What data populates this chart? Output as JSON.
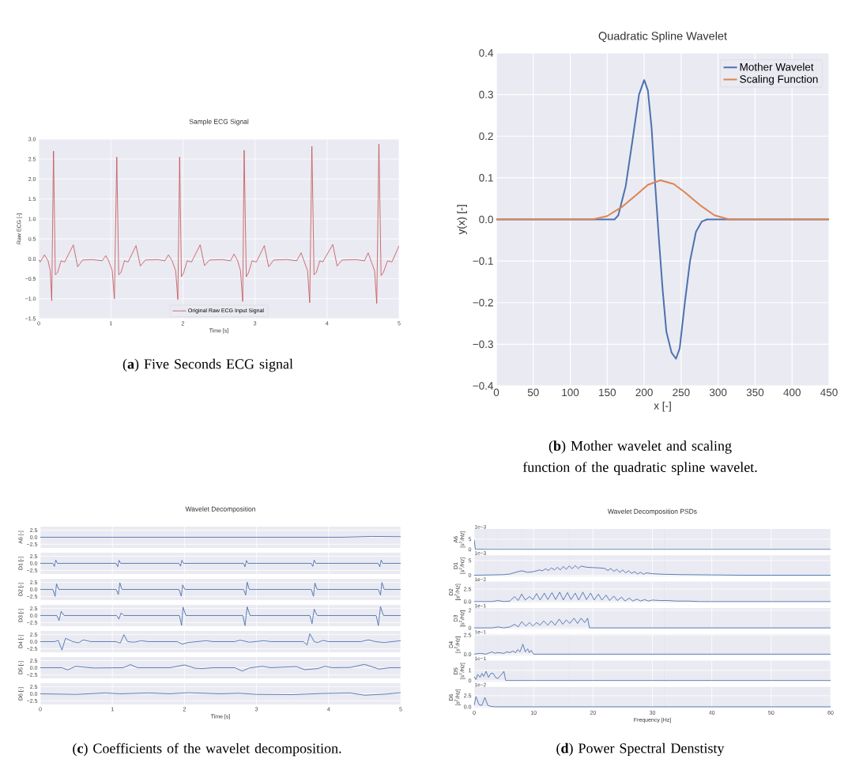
{
  "chart_data": [
    {
      "type": "line",
      "title": "Sample ECG Signal",
      "xlabel": "Time [s]",
      "ylabel": "Raw ECG [-]",
      "xlim": [
        0,
        5
      ],
      "ylim": [
        -1.5,
        3.0
      ],
      "xticks": [
        0,
        1,
        2,
        3,
        4,
        5
      ],
      "yticks": [
        {
          "value": -1.5,
          "label": "−1.5"
        },
        {
          "value": -1.0,
          "label": "−1.0"
        },
        {
          "value": -0.5,
          "label": "−0.5"
        },
        {
          "value": 0,
          "label": "0.0"
        },
        {
          "value": 0.5,
          "label": "0.5"
        },
        {
          "value": 1.0,
          "label": "1.0"
        },
        {
          "value": 1.5,
          "label": "1.5"
        },
        {
          "value": 2.0,
          "label": "2.0"
        },
        {
          "value": 2.5,
          "label": "2.5"
        },
        {
          "value": 3.0,
          "label": "3.0"
        }
      ],
      "grid": true,
      "legend": "bottom",
      "annotations": [
        "(**a**) Five Seconds ECG signal"
      ],
      "series": [
        {
          "name": "Original Raw ECG Input Signal",
          "color": "#c44e52",
          "x": [
            0,
            0.02,
            0.08,
            0.13,
            0.16,
            0.18,
            0.205,
            0.23,
            0.26,
            0.31,
            0.36,
            0.48,
            0.54,
            0.61,
            0.75,
            0.88,
            0.93,
            0.97,
            1.02,
            1.05,
            1.083,
            1.11,
            1.14,
            1.19,
            1.24,
            1.35,
            1.41,
            1.48,
            1.65,
            1.75,
            1.8,
            1.85,
            1.9,
            1.93,
            1.955,
            1.98,
            2.01,
            2.06,
            2.12,
            2.24,
            2.3,
            2.37,
            2.55,
            2.66,
            2.71,
            2.76,
            2.8,
            2.83,
            2.85,
            2.88,
            2.91,
            2.96,
            3.02,
            3.13,
            3.19,
            3.26,
            3.45,
            3.58,
            3.64,
            3.68,
            3.73,
            3.76,
            3.79,
            3.82,
            3.85,
            3.9,
            3.94,
            4.08,
            4.14,
            4.21,
            4.4,
            4.52,
            4.57,
            4.61,
            4.66,
            4.69,
            4.72,
            4.75,
            4.78,
            4.84,
            4.9,
            5
          ],
          "values": [
            -0.02,
            -0.08,
            0.1,
            -0.05,
            -0.3,
            -1.05,
            2.7,
            -0.4,
            -0.35,
            -0.05,
            -0.08,
            0.35,
            -0.2,
            -0.03,
            -0.02,
            -0.05,
            0.08,
            -0.05,
            -0.3,
            -1.0,
            2.55,
            -0.4,
            -0.35,
            -0.05,
            -0.08,
            0.33,
            -0.18,
            -0.03,
            -0.02,
            -0.05,
            0.1,
            -0.05,
            -0.3,
            -1.02,
            2.55,
            -0.45,
            -0.35,
            -0.05,
            -0.08,
            0.35,
            -0.17,
            -0.03,
            -0.02,
            -0.05,
            0.12,
            -0.05,
            -0.3,
            -1.07,
            2.72,
            -0.45,
            -0.35,
            -0.05,
            -0.08,
            0.33,
            -0.2,
            -0.03,
            -0.02,
            -0.05,
            0.15,
            -0.05,
            -0.3,
            -1.1,
            2.82,
            -0.4,
            -0.35,
            -0.05,
            -0.08,
            0.36,
            -0.18,
            -0.03,
            -0.02,
            -0.05,
            0.15,
            -0.05,
            -0.3,
            -1.12,
            2.88,
            -0.42,
            -0.35,
            -0.05,
            -0.08,
            0.33
          ]
        }
      ]
    },
    {
      "type": "line",
      "title": "Quadratic Spline Wavelet",
      "xlabel": "x [-]",
      "ylabel": "y(x) [-]",
      "xlim": [
        0,
        450
      ],
      "ylim": [
        -0.4,
        0.4
      ],
      "xticks": [
        0,
        50,
        100,
        150,
        200,
        250,
        300,
        350,
        400,
        450
      ],
      "yticks": [
        {
          "value": -0.4,
          "label": "−0.4"
        },
        {
          "value": -0.3,
          "label": "−0.3"
        },
        {
          "value": -0.2,
          "label": "−0.2"
        },
        {
          "value": -0.1,
          "label": "−0.1"
        },
        {
          "value": 0,
          "label": "0.0"
        },
        {
          "value": 0.1,
          "label": "0.1"
        },
        {
          "value": 0.2,
          "label": "0.2"
        },
        {
          "value": 0.3,
          "label": "0.3"
        },
        {
          "value": 0.4,
          "label": "0.4"
        }
      ],
      "grid": true,
      "legend": "top right",
      "annotations": [
        "(**b**) Mother wavelet and scaling function of the quadratic spline wavelet."
      ],
      "series": [
        {
          "name": "Mother Wavelet",
          "color": "#4c72b0",
          "x": [
            0,
            160,
            165,
            175,
            185,
            193,
            200,
            205,
            210,
            215,
            220,
            225,
            230,
            237,
            243,
            248,
            255,
            262,
            270,
            278,
            285,
            450
          ],
          "values": [
            0,
            0,
            0.01,
            0.08,
            0.2,
            0.3,
            0.335,
            0.31,
            0.22,
            0.08,
            -0.05,
            -0.17,
            -0.27,
            -0.32,
            -0.335,
            -0.31,
            -0.2,
            -0.1,
            -0.03,
            -0.005,
            0,
            0
          ]
        },
        {
          "name": "Scaling Function",
          "color": "#dd8452",
          "x": [
            0,
            130,
            150,
            170,
            190,
            205,
            222,
            240,
            255,
            275,
            295,
            315,
            450
          ],
          "values": [
            0,
            0,
            0.008,
            0.03,
            0.06,
            0.083,
            0.094,
            0.085,
            0.065,
            0.035,
            0.01,
            0,
            0
          ]
        }
      ]
    },
    {
      "type": "line",
      "title": "Wavelet Decomposition",
      "ylabel": "A6 [-]",
      "xlim": [
        0,
        5
      ],
      "ylim": [
        -3.8,
        3.8
      ],
      "xticks": [
        0,
        1,
        2,
        3,
        4,
        5
      ],
      "yticks": [
        {
          "value": -2.5,
          "label": "−2.5"
        },
        {
          "value": 0,
          "label": "0.0"
        },
        {
          "value": 2.5,
          "label": "2.5"
        }
      ],
      "grid": true,
      "tick_labels": "y",
      "series": [
        {
          "color": "#4c72b0",
          "x": [
            0,
            4.2,
            4.6,
            5
          ],
          "values": [
            0,
            0,
            0.3,
            0.2
          ]
        }
      ]
    },
    {
      "type": "line",
      "ylabel": "D1 [-]",
      "xlim": [
        0,
        5
      ],
      "ylim": [
        -3.8,
        3.8
      ],
      "xticks": [
        0,
        1,
        2,
        3,
        4,
        5
      ],
      "yticks": [
        {
          "value": -2.5,
          "label": "−2.5"
        },
        {
          "value": 0,
          "label": "0.0"
        },
        {
          "value": 2.5,
          "label": "2.5"
        }
      ],
      "grid": true,
      "tick_labels": "y",
      "series": [
        {
          "color": "#4c72b0",
          "x": [
            0,
            0.175,
            0.195,
            0.215,
            0.235,
            1.053,
            1.073,
            1.093,
            1.113,
            1.925,
            1.945,
            1.965,
            1.985,
            2.82,
            2.84,
            2.86,
            2.88,
            3.76,
            3.78,
            3.8,
            3.82,
            4.69,
            4.71,
            4.73,
            4.75,
            5
          ],
          "values": [
            0,
            0,
            -1.1,
            1.2,
            0,
            0,
            -1.2,
            1.1,
            0,
            0,
            -1.0,
            1.1,
            0,
            0,
            -1.2,
            1.0,
            0,
            0,
            -1.1,
            1.2,
            0,
            0,
            -1.2,
            1.2,
            0,
            0
          ]
        }
      ]
    },
    {
      "type": "line",
      "ylabel": "D2 [-]",
      "xlim": [
        0,
        5
      ],
      "ylim": [
        -3.8,
        3.8
      ],
      "xticks": [
        0,
        1,
        2,
        3,
        4,
        5
      ],
      "yticks": [
        {
          "value": -2.5,
          "label": "−2.5"
        },
        {
          "value": 0,
          "label": "0.0"
        },
        {
          "value": 2.5,
          "label": "2.5"
        }
      ],
      "grid": true,
      "tick_labels": "y",
      "series": [
        {
          "color": "#4c72b0",
          "x": [
            0,
            0.175,
            0.205,
            0.225,
            0.255,
            1.053,
            1.083,
            1.103,
            1.133,
            1.925,
            1.955,
            1.975,
            2.005,
            2.82,
            2.85,
            2.87,
            2.9,
            3.76,
            3.79,
            3.81,
            3.84,
            4.69,
            4.72,
            4.74,
            4.77,
            5
          ],
          "values": [
            0,
            0,
            -2.5,
            2.0,
            0,
            0,
            -1.8,
            2.4,
            0,
            0,
            -2.4,
            1.6,
            0,
            0,
            -2.0,
            2.6,
            0,
            0,
            -2.5,
            2.3,
            0,
            0,
            -2.0,
            2.5,
            0,
            0
          ]
        }
      ]
    },
    {
      "type": "line",
      "ylabel": "D3 [-]",
      "xlim": [
        0,
        5
      ],
      "ylim": [
        -3.8,
        3.8
      ],
      "xticks": [
        0,
        1,
        2,
        3,
        4,
        5
      ],
      "yticks": [
        {
          "value": -2.5,
          "label": "−2.5"
        },
        {
          "value": 0,
          "label": "0.0"
        },
        {
          "value": 2.5,
          "label": "2.5"
        }
      ],
      "grid": true,
      "tick_labels": "y",
      "series": [
        {
          "color": "#4c72b0",
          "x": [
            0,
            0.23,
            0.26,
            0.29,
            0.33,
            1.06,
            1.09,
            1.12,
            1.16,
            1.93,
            1.96,
            1.98,
            2.02,
            2.81,
            2.84,
            2.87,
            2.91,
            3.74,
            3.77,
            3.8,
            3.84,
            4.66,
            4.69,
            4.72,
            4.76,
            5
          ],
          "values": [
            0,
            0,
            -1.8,
            1.5,
            0,
            0,
            -1.3,
            0.9,
            0,
            0,
            -3.5,
            3.0,
            0,
            0,
            -3.6,
            3.1,
            0,
            0,
            -2.9,
            2.3,
            0,
            0,
            -3.6,
            3.2,
            0,
            0
          ]
        }
      ]
    },
    {
      "type": "line",
      "ylabel": "D4 [-]",
      "xlim": [
        0,
        5
      ],
      "ylim": [
        -3.8,
        3.8
      ],
      "xticks": [
        0,
        1,
        2,
        3,
        4,
        5
      ],
      "yticks": [
        {
          "value": -2.5,
          "label": "−2.5"
        },
        {
          "value": 0,
          "label": "0.0"
        },
        {
          "value": 2.5,
          "label": "2.5"
        }
      ],
      "grid": true,
      "tick_labels": "y",
      "series": [
        {
          "color": "#4c72b0",
          "x": [
            0,
            0.2,
            0.25,
            0.3,
            0.35,
            0.45,
            0.53,
            0.6,
            0.7,
            1.05,
            1.11,
            1.16,
            1.21,
            1.3,
            1.4,
            1.5,
            1.9,
            1.97,
            2.05,
            2.3,
            2.4,
            2.7,
            2.77,
            2.9,
            3.1,
            3.2,
            3.65,
            3.7,
            3.74,
            3.8,
            3.85,
            3.92,
            4.0,
            4.45,
            4.55,
            4.65,
            4.77,
            5
          ],
          "values": [
            0,
            0,
            0.4,
            -3.0,
            1.2,
            0,
            -0.4,
            0.6,
            0,
            0,
            -0.5,
            2.5,
            0,
            -0.2,
            0.3,
            0,
            0,
            -0.9,
            -0.3,
            0.3,
            0,
            0,
            0.5,
            -0.2,
            0.3,
            0,
            0,
            -1.2,
            2.8,
            0,
            -0.3,
            0.4,
            0,
            0,
            0.6,
            0,
            -0.3,
            0.3
          ]
        }
      ]
    },
    {
      "type": "line",
      "ylabel": "D5 [-]",
      "xlim": [
        0,
        5
      ],
      "ylim": [
        -3.8,
        3.8
      ],
      "xticks": [
        0,
        1,
        2,
        3,
        4,
        5
      ],
      "yticks": [
        {
          "value": -2.5,
          "label": "−2.5"
        },
        {
          "value": 0,
          "label": "0.0"
        },
        {
          "value": 2.5,
          "label": "2.5"
        }
      ],
      "grid": true,
      "tick_labels": "y",
      "series": [
        {
          "color": "#4c72b0",
          "x": [
            0,
            0.3,
            0.38,
            0.49,
            0.6,
            0.75,
            1.15,
            1.25,
            1.35,
            1.8,
            2.0,
            2.15,
            2.25,
            2.4,
            2.7,
            2.8,
            2.9,
            3.08,
            3.2,
            3.55,
            3.67,
            3.85,
            3.95,
            4.05,
            4.3,
            4.5,
            4.7,
            4.85,
            5
          ],
          "values": [
            0,
            0,
            -0.8,
            0.5,
            0.2,
            -0.1,
            0,
            1.1,
            0,
            0,
            1.0,
            -0.2,
            -0.3,
            0,
            0,
            -1.2,
            -0.1,
            0.5,
            0,
            0.4,
            -0.7,
            -0.3,
            0.5,
            0,
            0.1,
            1.2,
            -0.5,
            0,
            0
          ]
        }
      ]
    },
    {
      "type": "line",
      "xlabel": "Time [s]",
      "ylabel": "D6 [-]",
      "xlim": [
        0,
        5
      ],
      "ylim": [
        -3.8,
        3.8
      ],
      "xticks": [
        0,
        1,
        2,
        3,
        4,
        5
      ],
      "yticks": [
        {
          "value": -2.5,
          "label": "−2.5"
        },
        {
          "value": 0,
          "label": "0.0"
        },
        {
          "value": 2.5,
          "label": "2.5"
        }
      ],
      "grid": true,
      "annotations": [
        "(**c**) Coefficients of the wavelet decomposition."
      ],
      "series": [
        {
          "color": "#4c72b0",
          "x": [
            0,
            0.5,
            0.9,
            1.1,
            1.5,
            1.8,
            2.05,
            2.5,
            2.75,
            3.0,
            3.5,
            3.9,
            4.3,
            4.5,
            4.8,
            5
          ],
          "values": [
            0,
            -0.2,
            0.3,
            0,
            0.3,
            0,
            0.4,
            0,
            0.2,
            -0.2,
            -0.3,
            0.1,
            0.3,
            -0.5,
            -0.1,
            0.4
          ]
        }
      ]
    },
    {
      "type": "line",
      "title": "Wavelet Decomposition PSDs",
      "ylabel": "A6 [*s*$^{2}$*/Hz*]",
      "xlim": [
        0,
        60
      ],
      "ylim": [
        -0.25,
        10
      ],
      "xticks": [
        0,
        10,
        20,
        30,
        40,
        50,
        60
      ],
      "yticks": [
        0,
        5
      ],
      "grid": true,
      "tick_labels": "y",
      "annotations": [
        "1e−3"
      ],
      "ref_lines": [
        {
          "axis": "x",
          "value": 2,
          "color": "#8fa4cf",
          "line_style": "dotted"
        },
        {
          "axis": "x",
          "value": 4,
          "color": "#8fa4cf",
          "line_style": "dotted"
        },
        {
          "axis": "x",
          "value": 8,
          "color": "#8fa4cf",
          "line_style": "dotted"
        },
        {
          "axis": "x",
          "value": 16,
          "color": "#8fa4cf",
          "line_style": "dotted"
        },
        {
          "axis": "x",
          "value": 32,
          "color": "#8fa4cf",
          "line_style": "dotted"
        }
      ],
      "series": [
        {
          "color": "#4c72b0",
          "x": [
            0,
            0.2,
            1,
            2,
            60
          ],
          "values": [
            4.7,
            0,
            0.1,
            0,
            0
          ]
        }
      ]
    },
    {
      "type": "line",
      "ylabel": "D1 [*s*$^{2}$*/Hz*]",
      "xlim": [
        0,
        60
      ],
      "ylim": [
        -0.35,
        6.8
      ],
      "xticks": [
        0,
        10,
        20,
        30,
        40,
        50,
        60
      ],
      "yticks": [
        0,
        5
      ],
      "grid": true,
      "tick_labels": "y",
      "annotations": [
        "1e−3"
      ],
      "ref_lines": [
        {
          "axis": "x",
          "value": 2,
          "color": "#8fa4cf",
          "line_style": "dotted"
        },
        {
          "axis": "x",
          "value": 4,
          "color": "#8fa4cf",
          "line_style": "dotted"
        },
        {
          "axis": "x",
          "value": 8,
          "color": "#8fa4cf",
          "line_style": "dotted"
        },
        {
          "axis": "x",
          "value": 16,
          "color": "#8fa4cf",
          "line_style": "dotted"
        },
        {
          "axis": "x",
          "value": 32,
          "color": "#8fa4cf",
          "line_style": "dotted"
        }
      ],
      "series": [
        {
          "color": "#4c72b0",
          "x": [
            0,
            3,
            5,
            6,
            7,
            8,
            9,
            10,
            11,
            11.5,
            12,
            12.5,
            13,
            13.5,
            14,
            14.5,
            15,
            15.5,
            16,
            16.5,
            17,
            17.5,
            18,
            19,
            20,
            21,
            22,
            22.5,
            23,
            23.5,
            24,
            24.5,
            25,
            25.5,
            26,
            26.5,
            27,
            27.5,
            28,
            28.5,
            29,
            30,
            31,
            32,
            35,
            40,
            45,
            60
          ],
          "values": [
            0,
            0.1,
            0.2,
            0.4,
            1.0,
            1.5,
            1.0,
            1.2,
            1.8,
            1.5,
            2.2,
            1.6,
            2.5,
            1.8,
            2.7,
            1.8,
            3.0,
            2.0,
            3.2,
            2.2,
            3.3,
            2.3,
            3.1,
            2.7,
            2.6,
            2.5,
            2.3,
            1.6,
            2.3,
            1.3,
            2.0,
            1.0,
            1.8,
            0.8,
            1.5,
            0.6,
            1.2,
            0.4,
            1.0,
            0.3,
            0.8,
            0.5,
            0.4,
            0.3,
            0.2,
            0.1,
            0,
            0
          ]
        }
      ]
    },
    {
      "type": "line",
      "ylabel": "D2 [*s*$^{2}$*/Hz*]",
      "xlim": [
        0,
        60
      ],
      "ylim": [
        -0.2,
        4.0
      ],
      "xticks": [
        0,
        10,
        20,
        30,
        40,
        50,
        60
      ],
      "yticks": [
        {
          "value": 0,
          "label": "0.0"
        },
        {
          "value": 2.5,
          "label": "2.5"
        }
      ],
      "grid": true,
      "tick_labels": "y",
      "annotations": [
        "1e−2"
      ],
      "ref_lines": [
        {
          "axis": "x",
          "value": 2,
          "color": "#8fa4cf",
          "line_style": "dotted"
        },
        {
          "axis": "x",
          "value": 4,
          "color": "#8fa4cf",
          "line_style": "dotted"
        },
        {
          "axis": "x",
          "value": 8,
          "color": "#8fa4cf",
          "line_style": "dotted"
        },
        {
          "axis": "x",
          "value": 16,
          "color": "#8fa4cf",
          "line_style": "dotted"
        },
        {
          "axis": "x",
          "value": 32,
          "color": "#8fa4cf",
          "line_style": "dotted"
        }
      ],
      "series": [
        {
          "color": "#4c72b0",
          "x": [
            0,
            3,
            4,
            5,
            6,
            6.8,
            7.4,
            8,
            8.6,
            9.3,
            9.9,
            10.5,
            11.1,
            11.8,
            12.4,
            13.1,
            13.7,
            14.4,
            15,
            15.7,
            16.3,
            17,
            17.6,
            18.3,
            18.9,
            19.6,
            20.2,
            20.9,
            21.5,
            22.2,
            22.8,
            23.5,
            24.1,
            24.8,
            25.4,
            26.1,
            26.7,
            27.4,
            28,
            28.7,
            29.3,
            30,
            31.3,
            32.6,
            34,
            36,
            38,
            39,
            60
          ],
          "values": [
            0,
            0,
            0.2,
            0,
            0.1,
            1.0,
            0.2,
            1.5,
            0.3,
            1.0,
            0.4,
            1.6,
            0.3,
            1.7,
            0.4,
            1.8,
            0.4,
            1.9,
            0.3,
            1.8,
            0.4,
            1.7,
            0.3,
            1.9,
            0.4,
            1.7,
            0.3,
            1.5,
            0.3,
            1.3,
            0.2,
            1.1,
            0.2,
            0.9,
            0.1,
            0.7,
            0.1,
            0.5,
            0.1,
            0.4,
            0.1,
            0.3,
            0.2,
            0.2,
            0.1,
            0.1,
            0,
            0,
            0
          ]
        }
      ]
    },
    {
      "type": "line",
      "ylabel": "D3 [*s*$^{2}$*/Hz*]",
      "xlim": [
        0,
        60
      ],
      "ylim": [
        -0.12,
        2.27
      ],
      "xticks": [
        0,
        10,
        20,
        30,
        40,
        50,
        60
      ],
      "yticks": [
        0,
        2
      ],
      "grid": true,
      "tick_labels": "y",
      "annotations": [
        "1e−1"
      ],
      "ref_lines": [
        {
          "axis": "x",
          "value": 2,
          "color": "#8fa4cf",
          "line_style": "dotted"
        },
        {
          "axis": "x",
          "value": 4,
          "color": "#8fa4cf",
          "line_style": "dotted"
        },
        {
          "axis": "x",
          "value": 8,
          "color": "#8fa4cf",
          "line_style": "dotted"
        },
        {
          "axis": "x",
          "value": 16,
          "color": "#8fa4cf",
          "line_style": "dotted"
        },
        {
          "axis": "x",
          "value": 32,
          "color": "#8fa4cf",
          "line_style": "dotted"
        }
      ],
      "series": [
        {
          "color": "#4c72b0",
          "x": [
            0,
            3,
            4,
            5,
            6,
            6.8,
            7.4,
            8,
            8.7,
            9.3,
            9.9,
            10.5,
            11.1,
            11.7,
            12.4,
            13,
            13.6,
            14.3,
            14.9,
            15.5,
            16.1,
            16.8,
            17.4,
            18,
            18.6,
            19.1,
            19.4,
            60
          ],
          "values": [
            0,
            0,
            0.1,
            0,
            0.1,
            0.4,
            0.1,
            0.7,
            0.2,
            0.6,
            0.2,
            0.6,
            0.3,
            0.8,
            0.3,
            0.8,
            0.3,
            1.0,
            0.4,
            0.9,
            0.5,
            1.1,
            0.5,
            1.1,
            0.6,
            1.1,
            0,
            0
          ]
        }
      ]
    },
    {
      "type": "line",
      "ylabel": "D4 [*s*$^{2}$*/Hz*]",
      "xlim": [
        0,
        60
      ],
      "ylim": [
        -0.14,
        2.6
      ],
      "xticks": [
        0,
        10,
        20,
        30,
        40,
        50,
        60
      ],
      "yticks": [
        {
          "value": 0,
          "label": "0.0"
        },
        {
          "value": 2.5,
          "label": "2.5"
        }
      ],
      "grid": true,
      "tick_labels": "y",
      "annotations": [
        "1e−1"
      ],
      "ref_lines": [
        {
          "axis": "x",
          "value": 2,
          "color": "#8fa4cf",
          "line_style": "dotted"
        },
        {
          "axis": "x",
          "value": 4,
          "color": "#8fa4cf",
          "line_style": "dotted"
        },
        {
          "axis": "x",
          "value": 8,
          "color": "#8fa4cf",
          "line_style": "dotted"
        },
        {
          "axis": "x",
          "value": 16,
          "color": "#8fa4cf",
          "line_style": "dotted"
        },
        {
          "axis": "x",
          "value": 32,
          "color": "#8fa4cf",
          "line_style": "dotted"
        }
      ],
      "series": [
        {
          "color": "#4c72b0",
          "x": [
            0,
            1,
            2,
            3,
            3.5,
            4,
            5,
            5.5,
            6,
            6.5,
            7,
            7.3,
            7.7,
            8.2,
            8.6,
            9,
            9.3,
            9.6,
            10,
            60
          ],
          "values": [
            0,
            0.1,
            0,
            0.3,
            0.1,
            0.2,
            0.1,
            0.3,
            0.2,
            0.4,
            0.2,
            0.6,
            0.3,
            1.3,
            0.3,
            0.7,
            0.2,
            0.5,
            0,
            0
          ]
        }
      ]
    },
    {
      "type": "line",
      "ylabel": "D5 [*s*$^{2}$*/Hz*]",
      "xlim": [
        0,
        60
      ],
      "ylim": [
        -0.1,
        1.95
      ],
      "xticks": [
        0,
        10,
        20,
        30,
        40,
        50,
        60
      ],
      "yticks": [
        0,
        1
      ],
      "grid": true,
      "tick_labels": "y",
      "annotations": [
        "1e−1"
      ],
      "ref_lines": [
        {
          "axis": "x",
          "value": 2,
          "color": "#8fa4cf",
          "line_style": "dotted"
        },
        {
          "axis": "x",
          "value": 4,
          "color": "#8fa4cf",
          "line_style": "dotted"
        },
        {
          "axis": "x",
          "value": 8,
          "color": "#8fa4cf",
          "line_style": "dotted"
        },
        {
          "axis": "x",
          "value": 16,
          "color": "#8fa4cf",
          "line_style": "dotted"
        },
        {
          "axis": "x",
          "value": 32,
          "color": "#8fa4cf",
          "line_style": "dotted"
        }
      ],
      "series": [
        {
          "color": "#4c72b0",
          "x": [
            0,
            0.3,
            0.6,
            1,
            1.3,
            1.6,
            2,
            2.4,
            2.8,
            3.2,
            3.6,
            4.0,
            4.6,
            5.0,
            5.3,
            60
          ],
          "values": [
            0.4,
            0.1,
            0.6,
            0.3,
            0.7,
            0.4,
            0.9,
            0.3,
            0.7,
            0.7,
            0.3,
            0.2,
            0.6,
            0.9,
            0,
            0
          ]
        }
      ]
    },
    {
      "type": "line",
      "xlabel": "Frequency [Hz]",
      "ylabel": "D6 [*s*$^{2}$*/Hz*]",
      "xlim": [
        0,
        60
      ],
      "ylim": [
        -0.24,
        4.46
      ],
      "xticks": [
        0,
        10,
        20,
        30,
        40,
        50,
        60
      ],
      "yticks": [
        {
          "value": 0,
          "label": "0.0"
        },
        {
          "value": 2.5,
          "label": "2.5"
        }
      ],
      "grid": true,
      "annotations": [
        "1e−2",
        "(**d**) Power Spectral Denstisty"
      ],
      "ref_lines": [
        {
          "axis": "x",
          "value": 2,
          "color": "#8fa4cf",
          "line_style": "dotted"
        },
        {
          "axis": "x",
          "value": 4,
          "color": "#8fa4cf",
          "line_style": "dotted"
        },
        {
          "axis": "x",
          "value": 8,
          "color": "#8fa4cf",
          "line_style": "dotted"
        },
        {
          "axis": "x",
          "value": 16,
          "color": "#8fa4cf",
          "line_style": "dotted"
        },
        {
          "axis": "x",
          "value": 32,
          "color": "#8fa4cf",
          "line_style": "dotted"
        }
      ],
      "series": [
        {
          "color": "#4c72b0",
          "x": [
            0,
            0.3,
            0.8,
            1.3,
            1.8,
            2.3,
            2.8,
            3.5,
            60
          ],
          "values": [
            0.3,
            2.3,
            0.5,
            0.3,
            2.1,
            0.3,
            0.1,
            0,
            0
          ]
        }
      ]
    }
  ]
}
